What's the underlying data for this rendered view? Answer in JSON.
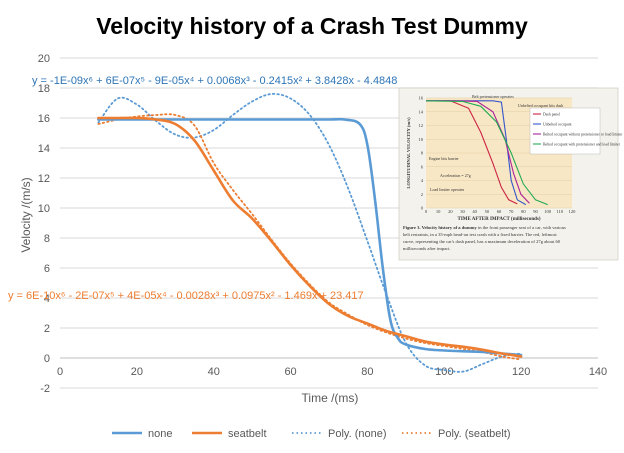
{
  "chart_data": {
    "type": "line",
    "title": "Velocity history of a Crash Test Dummy",
    "xlabel": "Time /(ms)",
    "ylabel": "Velocity /(m/s)",
    "xlim": [
      0,
      140
    ],
    "ylim": [
      -2,
      20
    ],
    "xticks": [
      0,
      20,
      40,
      60,
      80,
      100,
      120,
      140
    ],
    "yticks": [
      -2,
      0,
      2,
      4,
      6,
      8,
      10,
      12,
      14,
      16,
      18,
      20
    ],
    "grid": "horizontal",
    "legend_position": "bottom",
    "series": [
      {
        "name": "none",
        "style": "solid",
        "color": "#5B9BD5",
        "x": [
          10,
          20,
          30,
          40,
          50,
          60,
          70,
          74,
          78,
          80,
          82,
          84,
          86,
          88,
          90,
          95,
          100,
          105,
          110,
          115,
          120
        ],
        "y": [
          15.9,
          15.9,
          15.9,
          15.9,
          15.9,
          15.9,
          15.9,
          15.9,
          15.6,
          14.2,
          10.5,
          6.0,
          2.5,
          1.3,
          0.9,
          0.6,
          0.5,
          0.45,
          0.4,
          0.3,
          0.2
        ]
      },
      {
        "name": "seatbelt",
        "style": "solid",
        "color": "#ED7D31",
        "x": [
          10,
          15,
          20,
          25,
          30,
          35,
          40,
          45,
          50,
          55,
          60,
          65,
          70,
          75,
          80,
          85,
          90,
          95,
          100,
          105,
          110,
          115,
          120
        ],
        "y": [
          16.0,
          16.0,
          16.0,
          15.9,
          15.6,
          14.5,
          12.5,
          10.5,
          9.3,
          7.8,
          6.2,
          4.8,
          3.6,
          2.8,
          2.3,
          1.8,
          1.45,
          1.1,
          0.9,
          0.75,
          0.55,
          0.3,
          0.1
        ]
      },
      {
        "name": "Poly. (none)",
        "style": "dotted",
        "color": "#5B9BD5",
        "x": [
          10,
          15,
          20,
          25,
          30,
          35,
          40,
          45,
          50,
          55,
          60,
          65,
          70,
          75,
          80,
          85,
          90,
          95,
          100,
          105,
          110,
          115,
          120
        ],
        "y": [
          15.7,
          17.3,
          16.9,
          15.8,
          14.9,
          14.7,
          15.2,
          16.2,
          17.1,
          17.6,
          17.3,
          16.2,
          14.2,
          11.3,
          7.8,
          4.2,
          1.0,
          -0.5,
          -0.8,
          -0.9,
          -0.4,
          0.1,
          0.3
        ]
      },
      {
        "name": "Poly. (seatbelt)",
        "style": "dotted",
        "color": "#ED7D31",
        "x": [
          10,
          15,
          20,
          25,
          30,
          35,
          40,
          45,
          50,
          55,
          60,
          65,
          70,
          75,
          80,
          85,
          90,
          95,
          100,
          105,
          110,
          115,
          120
        ],
        "y": [
          15.6,
          15.9,
          16.1,
          16.2,
          16.2,
          15.5,
          13.0,
          11.2,
          9.6,
          7.9,
          6.3,
          4.9,
          3.7,
          2.9,
          2.2,
          1.7,
          1.3,
          1.0,
          0.8,
          0.6,
          0.4,
          0.1,
          -0.1
        ]
      }
    ],
    "annotations": [
      {
        "text": "y = -1E-09x⁶ + 6E-07x⁵ - 9E-05x⁴ + 0.0068x³ - 0.2415x² + 3.8428x - 4.4848",
        "color": "#2E75B6"
      },
      {
        "text": "y = 6E-10x⁶ - 2E-07x⁵ + 4E-05x⁴ - 0.0028x³ + 0.0975x² - 1.469x + 23.417",
        "color": "#ED7D31"
      }
    ]
  },
  "inset": {
    "y_axis_label": "LONGITUDINAL VELOCITY (m/s)",
    "x_axis_label": "TIME AFTER IMPACT (milliseconds)",
    "yticks": [
      "0",
      "2",
      "4",
      "6",
      "8",
      "10",
      "12",
      "14",
      "16"
    ],
    "xticks": [
      "0",
      "10",
      "20",
      "30",
      "40",
      "50",
      "60",
      "70",
      "80",
      "90",
      "100",
      "110",
      "120"
    ],
    "legend": [
      {
        "label": "Dash panel",
        "color": "#cc2244"
      },
      {
        "label": "Unbelted occupant",
        "color": "#3355cc"
      },
      {
        "label": "Belted occupant without pretensioner or load limiter",
        "color": "#aa2299"
      },
      {
        "label": "Belted occupant with pretensioner and load limiter",
        "color": "#22aa55"
      }
    ],
    "annotations": [
      "Belt pretensioner operates",
      "Unbelted occupant hits dash",
      "Engine hits barrier",
      "Acceleration = 27g",
      "Load limiter operates"
    ],
    "caption_bold": "Figure 3. Velocity history of a dummy",
    "caption_rest": "in the front passenger seat of a car, with various belt restraints, in a 35-mph head-on test crash with a fixed barrier. The red, leftmost curve, representing the car's dash panel, has a maximum deceleration of 27g about 60 milliseconds after impact."
  }
}
